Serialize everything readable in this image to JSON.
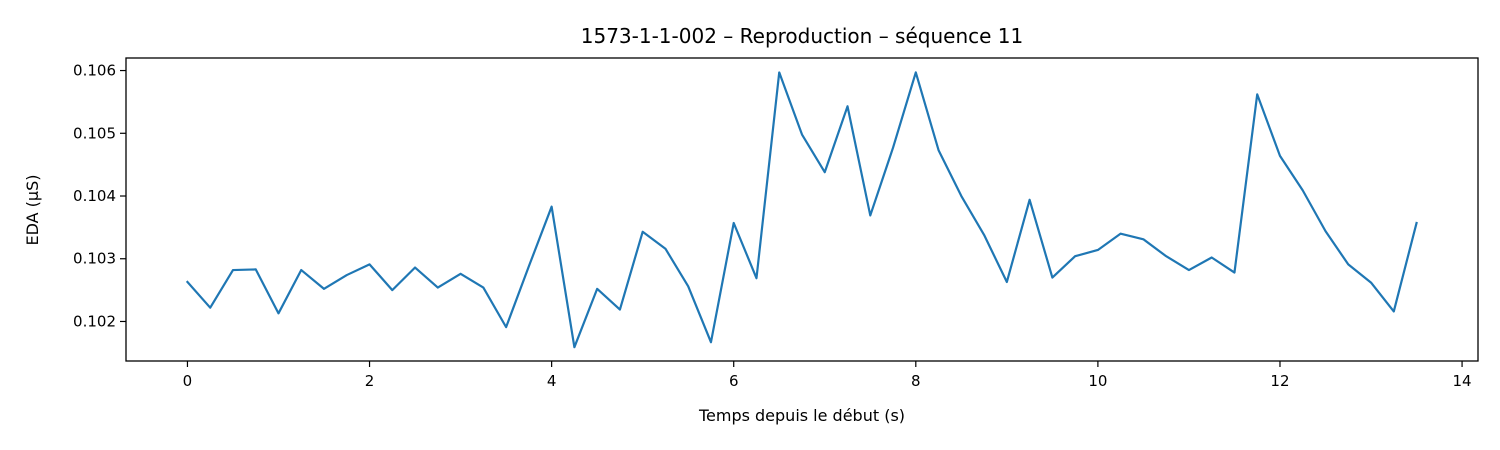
{
  "chart_data": {
    "type": "line",
    "title": "1573-1-1-002 – Reproduction – séquence 11",
    "xlabel": "Temps depuis le début (s)",
    "ylabel": "EDA (µS)",
    "xlim": [
      -0.675,
      14.175
    ],
    "ylim": [
      0.10137,
      0.1062
    ],
    "xticks": [
      0,
      2,
      4,
      6,
      8,
      10,
      12,
      14
    ],
    "xtick_labels": [
      "0",
      "2",
      "4",
      "6",
      "8",
      "10",
      "12",
      "14"
    ],
    "yticks": [
      0.102,
      0.103,
      0.104,
      0.105,
      0.106
    ],
    "ytick_labels": [
      "0.102",
      "0.103",
      "0.104",
      "0.105",
      "0.106"
    ],
    "grid": false,
    "series": [
      {
        "color": "#1f77b4",
        "x": [
          0,
          0.25,
          0.5,
          0.75,
          1,
          1.25,
          1.5,
          1.75,
          2,
          2.25,
          2.5,
          2.75,
          3,
          3.25,
          3.5,
          3.75,
          4,
          4.25,
          4.5,
          4.75,
          5,
          5.25,
          5.5,
          5.75,
          6,
          6.25,
          6.5,
          6.75,
          7,
          7.25,
          7.5,
          7.75,
          8,
          8.25,
          8.5,
          8.75,
          9,
          9.25,
          9.5,
          9.75,
          10,
          10.25,
          10.5,
          10.75,
          11,
          11.25,
          11.5,
          11.75,
          12,
          12.25,
          12.5,
          12.75,
          13,
          13.25,
          13.5
        ],
        "y": [
          0.10263,
          0.10222,
          0.10282,
          0.10283,
          0.10213,
          0.10282,
          0.10252,
          0.10274,
          0.10291,
          0.1025,
          0.10286,
          0.10254,
          0.10276,
          0.10254,
          0.10191,
          0.10288,
          0.10383,
          0.10159,
          0.10252,
          0.10219,
          0.10343,
          0.10316,
          0.10256,
          0.10167,
          0.10357,
          0.10269,
          0.10597,
          0.10498,
          0.10438,
          0.10543,
          0.10369,
          0.10477,
          0.10597,
          0.10473,
          0.104,
          0.10338,
          0.10263,
          0.10394,
          0.1027,
          0.10304,
          0.10314,
          0.1034,
          0.10331,
          0.10304,
          0.10282,
          0.10302,
          0.10278,
          0.10562,
          0.10464,
          0.10409,
          0.10344,
          0.10291,
          0.10262,
          0.10216,
          0.10357
        ]
      }
    ]
  }
}
